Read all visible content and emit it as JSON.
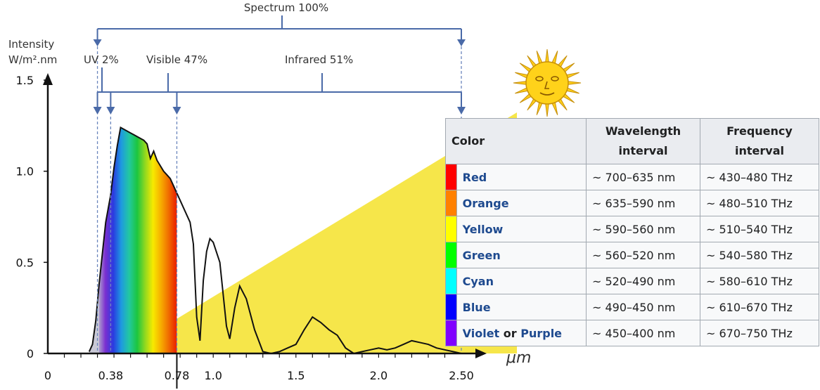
{
  "chart_data": {
    "type": "line",
    "title": "Spectrum 100%",
    "ylabel_line1": "Intensity",
    "ylabel_line2": "W/m².nm",
    "xlabel": "μm",
    "xlim": [
      0,
      2.5
    ],
    "ylim": [
      0,
      1.5
    ],
    "x_ticks": [
      "0",
      "0.38",
      "0.78",
      "1.0",
      "1.5",
      "2.0",
      "2.50"
    ],
    "y_ticks": [
      "0",
      "0.5",
      "1.0",
      "1.5"
    ],
    "regions": [
      {
        "label": "UV 2%"
      },
      {
        "label": "Visible 47%"
      },
      {
        "label": "Infrared 51%"
      }
    ],
    "series": [
      {
        "x": [
          0.25,
          0.27,
          0.29,
          0.31,
          0.33,
          0.35,
          0.37,
          0.38,
          0.4,
          0.42,
          0.44,
          0.46,
          0.48,
          0.5,
          0.52,
          0.54,
          0.56,
          0.58,
          0.6,
          0.62,
          0.64,
          0.66,
          0.68,
          0.7,
          0.72,
          0.74,
          0.76,
          0.78,
          0.8,
          0.82,
          0.84,
          0.86,
          0.88,
          0.9,
          0.92,
          0.94,
          0.96,
          0.98,
          1.0,
          1.04,
          1.08,
          1.1,
          1.13,
          1.16,
          1.2,
          1.25,
          1.3,
          1.35,
          1.4,
          1.45,
          1.5,
          1.55,
          1.6,
          1.65,
          1.7,
          1.75,
          1.8,
          1.85,
          1.9,
          1.95,
          2.0,
          2.05,
          2.1,
          2.15,
          2.2,
          2.25,
          2.3,
          2.35,
          2.4,
          2.45,
          2.5
        ],
        "y": [
          0.01,
          0.05,
          0.18,
          0.38,
          0.55,
          0.72,
          0.82,
          0.87,
          1.02,
          1.14,
          1.24,
          1.23,
          1.22,
          1.21,
          1.2,
          1.19,
          1.18,
          1.17,
          1.15,
          1.07,
          1.11,
          1.06,
          1.03,
          1.0,
          0.98,
          0.96,
          0.92,
          0.88,
          0.84,
          0.8,
          0.76,
          0.72,
          0.6,
          0.2,
          0.07,
          0.4,
          0.56,
          0.63,
          0.61,
          0.5,
          0.15,
          0.08,
          0.25,
          0.37,
          0.3,
          0.13,
          0.01,
          0.0,
          0.01,
          0.03,
          0.05,
          0.13,
          0.2,
          0.17,
          0.13,
          0.1,
          0.03,
          0.0,
          0.01,
          0.02,
          0.03,
          0.02,
          0.03,
          0.05,
          0.07,
          0.06,
          0.05,
          0.03,
          0.02,
          0.01,
          0.0
        ]
      }
    ],
    "color_scale": [
      "#b8b8cc",
      "#7b2fd0",
      "#2a3be0",
      "#1e9ae0",
      "#22c8a0",
      "#1cc640",
      "#90d820",
      "#f7ea00",
      "#f7ad00",
      "#f06a00",
      "#ea1c00"
    ],
    "infrared_fill": "#f6e64a",
    "grid": false
  },
  "table": {
    "headers": {
      "color": "Color",
      "wavelength_line1": "Wavelength",
      "wavelength_line2": "interval",
      "frequency_line1": "Frequency",
      "frequency_line2": "interval"
    },
    "rows": [
      {
        "name": "Red",
        "swatch": "#ff0000",
        "wavelength": "~ 700–635 nm",
        "frequency": "~ 430–480 THz"
      },
      {
        "name": "Orange",
        "swatch": "#ff8000",
        "wavelength": "~ 635–590 nm",
        "frequency": "~ 480–510 THz"
      },
      {
        "name": "Yellow",
        "swatch": "#ffff00",
        "wavelength": "~ 590–560 nm",
        "frequency": "~ 510–540 THz"
      },
      {
        "name": "Green",
        "swatch": "#00ff00",
        "wavelength": "~ 560–520 nm",
        "frequency": "~ 540–580 THz"
      },
      {
        "name": "Cyan",
        "swatch": "#00ffff",
        "wavelength": "~ 520–490 nm",
        "frequency": "~ 580–610 THz"
      },
      {
        "name": "Blue",
        "swatch": "#0000ff",
        "wavelength": "~ 490–450 nm",
        "frequency": "~ 610–670 THz"
      },
      {
        "name_a": "Violet",
        "name_join": "or",
        "name_b": "Purple",
        "swatch": "#8000ff",
        "wavelength": "~ 450–400 nm",
        "frequency": "~ 670–750 THz"
      }
    ]
  }
}
